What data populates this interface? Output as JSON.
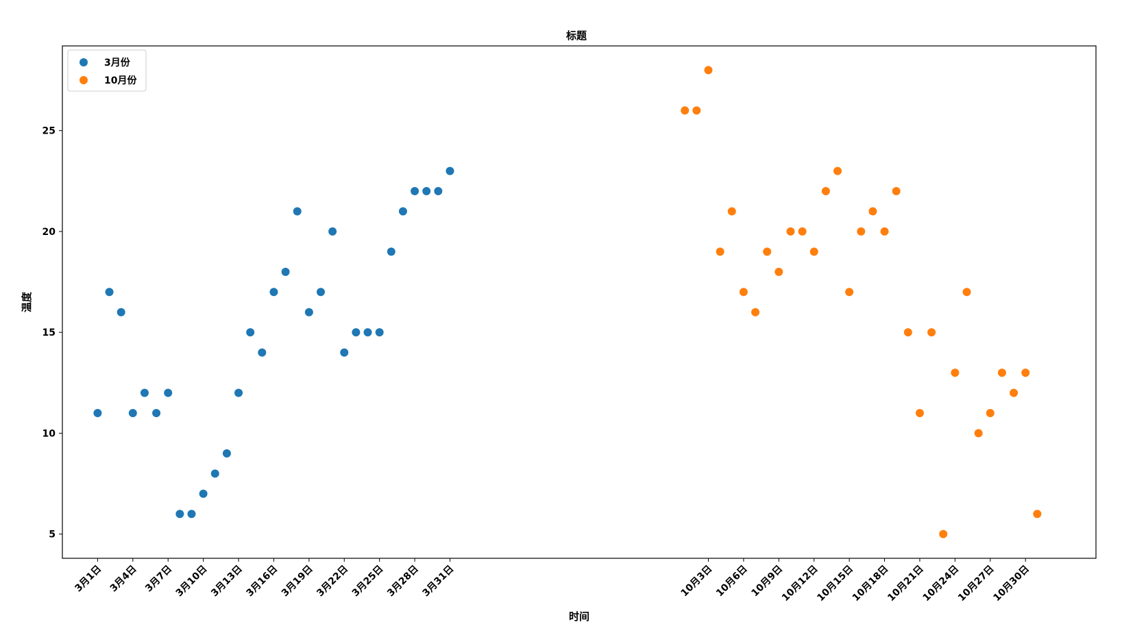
{
  "chart_data": {
    "type": "scatter",
    "title": "标题",
    "xlabel": "时间",
    "ylabel": "温度",
    "ylim": [
      3.8,
      29.2
    ],
    "yticks": [
      5,
      10,
      15,
      20,
      25
    ],
    "grid": false,
    "legend_position": "top-left",
    "x_index_range": [
      -3,
      85
    ],
    "xticks": [
      {
        "x": 0,
        "label": "3月1日"
      },
      {
        "x": 3,
        "label": "3月4日"
      },
      {
        "x": 6,
        "label": "3月7日"
      },
      {
        "x": 9,
        "label": "3月10日"
      },
      {
        "x": 12,
        "label": "3月13日"
      },
      {
        "x": 15,
        "label": "3月16日"
      },
      {
        "x": 18,
        "label": "3月19日"
      },
      {
        "x": 21,
        "label": "3月22日"
      },
      {
        "x": 24,
        "label": "3月25日"
      },
      {
        "x": 27,
        "label": "3月28日"
      },
      {
        "x": 30,
        "label": "3月31日"
      },
      {
        "x": 52,
        "label": "10月3日"
      },
      {
        "x": 55,
        "label": "10月6日"
      },
      {
        "x": 58,
        "label": "10月9日"
      },
      {
        "x": 61,
        "label": "10月12日"
      },
      {
        "x": 64,
        "label": "10月15日"
      },
      {
        "x": 67,
        "label": "10月18日"
      },
      {
        "x": 70,
        "label": "10月21日"
      },
      {
        "x": 73,
        "label": "10月24日"
      },
      {
        "x": 76,
        "label": "10月27日"
      },
      {
        "x": 79,
        "label": "10月30日"
      }
    ],
    "series": [
      {
        "name": "3月份",
        "color": "#1f77b4",
        "x": [
          0,
          1,
          2,
          3,
          4,
          5,
          6,
          7,
          8,
          9,
          10,
          11,
          12,
          13,
          14,
          15,
          16,
          17,
          18,
          19,
          20,
          21,
          22,
          23,
          24,
          25,
          26,
          27,
          28,
          29,
          30
        ],
        "y": [
          11,
          17,
          16,
          11,
          12,
          11,
          12,
          6,
          6,
          7,
          8,
          9,
          12,
          15,
          14,
          17,
          18,
          21,
          16,
          17,
          20,
          14,
          15,
          15,
          15,
          19,
          21,
          22,
          22,
          22,
          23
        ]
      },
      {
        "name": "10月份",
        "color": "#ff7f0e",
        "x": [
          50,
          51,
          52,
          53,
          54,
          55,
          56,
          57,
          58,
          59,
          60,
          61,
          62,
          63,
          64,
          65,
          66,
          67,
          68,
          69,
          70,
          71,
          72,
          73,
          74,
          75,
          76,
          77,
          78,
          79,
          80
        ],
        "y": [
          26,
          26,
          28,
          19,
          21,
          17,
          16,
          19,
          18,
          20,
          20,
          19,
          22,
          23,
          17,
          20,
          21,
          20,
          22,
          15,
          11,
          15,
          5,
          13,
          17,
          10,
          11,
          13,
          12,
          13,
          6
        ]
      }
    ]
  }
}
